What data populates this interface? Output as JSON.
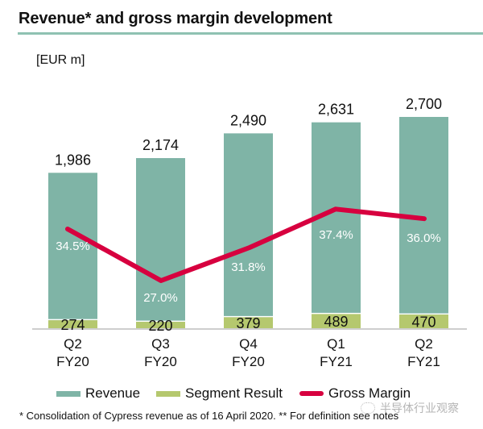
{
  "header": {
    "title": "Revenue* and gross margin development",
    "unit": "[EUR m]"
  },
  "colors": {
    "revenue": "#7fb4a6",
    "segment": "#b5c86e",
    "margin": "#d7003f",
    "title_rule": "#8fc2b2",
    "axis": "#bdbdbd"
  },
  "chart_data": {
    "type": "bar",
    "title": "Revenue* and gross margin development",
    "ylabel": "[EUR m]",
    "xlabel": "",
    "categories": [
      "Q2 FY20",
      "Q3 FY20",
      "Q4 FY20",
      "Q1 FY21",
      "Q2 FY21"
    ],
    "category_lines": [
      [
        "Q2",
        "FY20"
      ],
      [
        "Q3",
        "FY20"
      ],
      [
        "Q4",
        "FY20"
      ],
      [
        "Q1",
        "FY21"
      ],
      [
        "Q2",
        "FY21"
      ]
    ],
    "series": [
      {
        "name": "Revenue",
        "type": "bar",
        "values": [
          1986,
          2174,
          2490,
          2631,
          2700
        ],
        "labels": [
          "1,986",
          "2,174",
          "2,490",
          "2,631",
          "2,700"
        ]
      },
      {
        "name": "Segment Result",
        "type": "bar",
        "values": [
          274,
          220,
          379,
          489,
          470
        ],
        "labels": [
          "274",
          "220",
          "379",
          "489",
          "470"
        ]
      },
      {
        "name": "Gross Margin",
        "type": "line",
        "unit": "%",
        "values": [
          34.5,
          27.0,
          31.8,
          37.4,
          36.0
        ],
        "labels": [
          "34.5%",
          "27.0%",
          "31.8%",
          "37.4%",
          "36.0%"
        ]
      }
    ],
    "ylim": [
      0,
      2700
    ],
    "margin_ylim": [
      20,
      42
    ],
    "grid": false,
    "legend": {
      "position": "bottom",
      "entries": [
        "Revenue",
        "Segment Result",
        "Gross Margin"
      ]
    }
  },
  "legend": {
    "revenue": "Revenue",
    "segment": "Segment Result",
    "margin": "Gross Margin"
  },
  "footnote": "* Consolidation of Cypress revenue as of 16 April 2020. ** For definition see notes",
  "watermark": "半导体行业观察"
}
